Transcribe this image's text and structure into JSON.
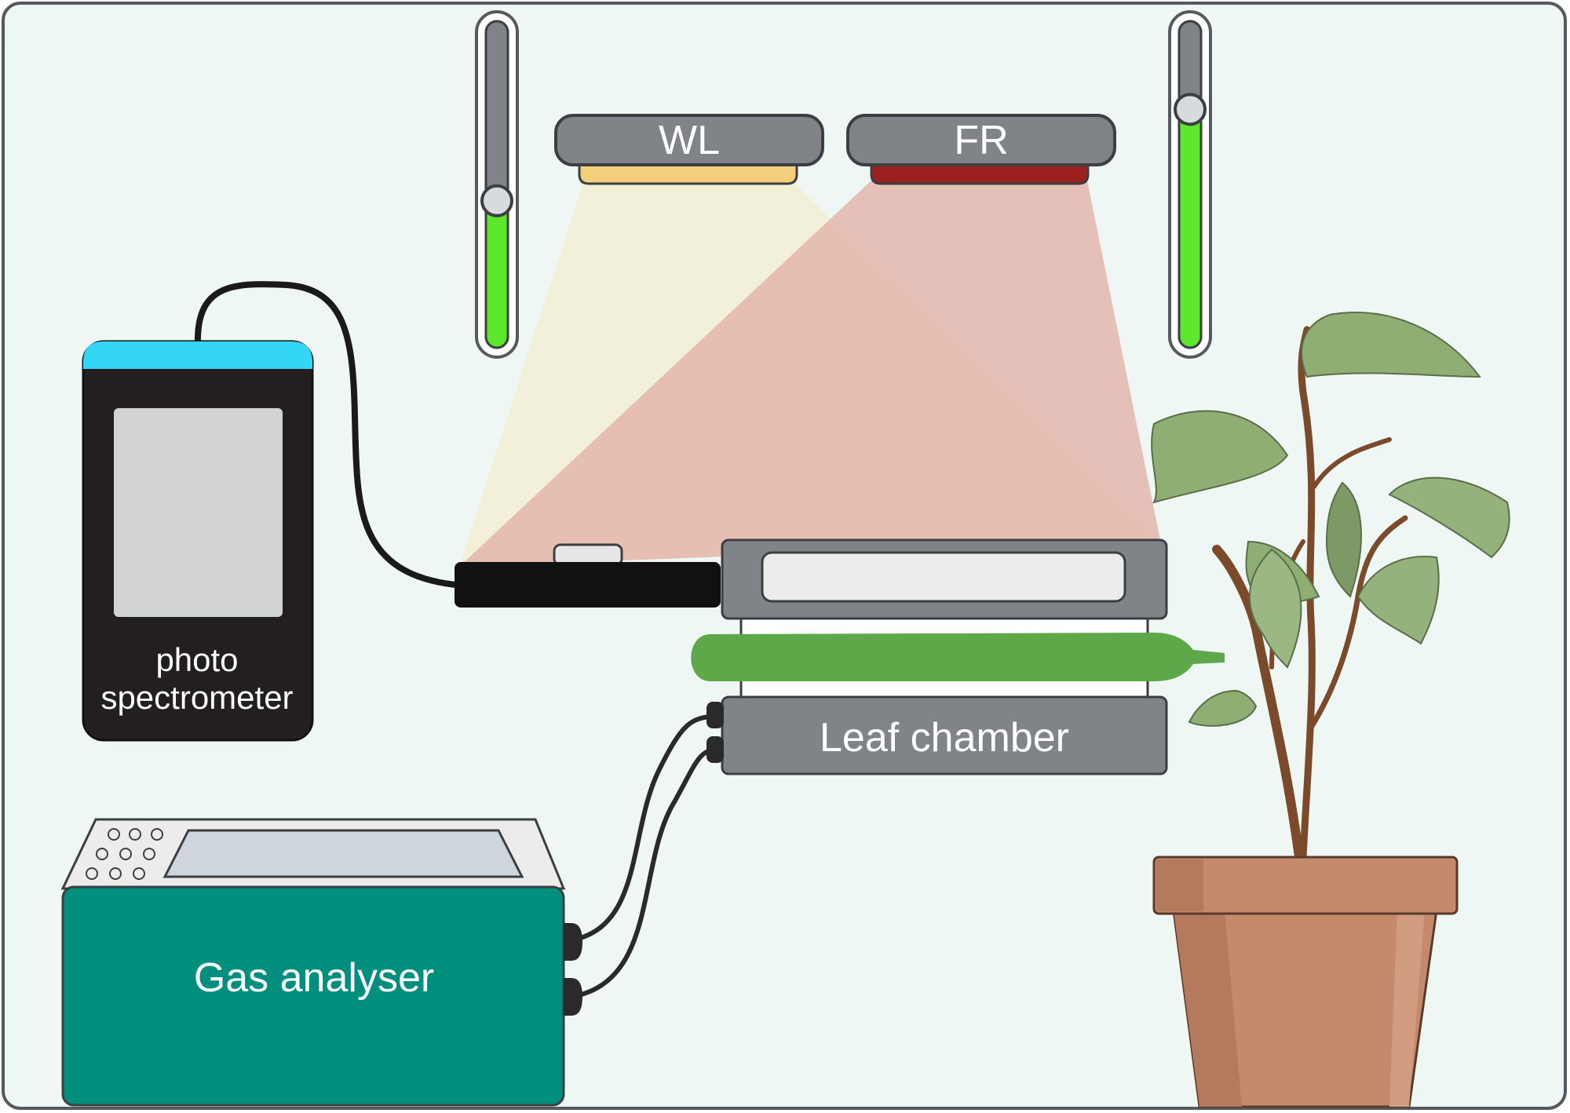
{
  "labels": {
    "wl_lamp": "WL",
    "fr_lamp": "FR",
    "photospectrometer_line1": "photo",
    "photospectrometer_line2": "spectrometer",
    "leaf_chamber": "Leaf chamber",
    "gas_analyser": "Gas analyser"
  },
  "sliders": {
    "wl_intensity": 0.45,
    "fr_intensity": 0.73
  },
  "colors": {
    "background": "#eef7f3",
    "frame": "#555a5e",
    "lamp_housing": "#808488",
    "wl_light": "#f3cf7b",
    "fr_light": "#9c2020",
    "wl_beam": "#f2efd7",
    "fr_beam": "#e6b7ae",
    "slider_fill": "#5ee82b",
    "spectrometer_body": "#231f20",
    "spectrometer_top": "#33d6f5",
    "screen": "#d1d3d4",
    "analyser_body": "#008e7d",
    "analyser_top": "#ececec",
    "leaf": "#5ea84a",
    "pot": "#c58a6c"
  },
  "icons": {
    "sensor": "light-sensor-icon",
    "plant": "potted-plant-icon"
  }
}
